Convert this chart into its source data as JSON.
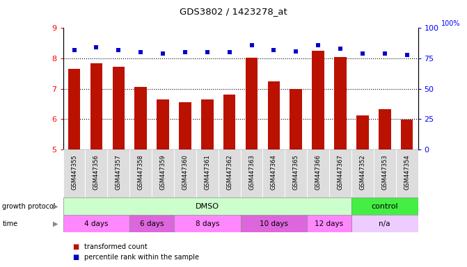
{
  "title": "GDS3802 / 1423278_at",
  "samples": [
    "GSM447355",
    "GSM447356",
    "GSM447357",
    "GSM447358",
    "GSM447359",
    "GSM447360",
    "GSM447361",
    "GSM447362",
    "GSM447363",
    "GSM447364",
    "GSM447365",
    "GSM447366",
    "GSM447367",
    "GSM447352",
    "GSM447353",
    "GSM447354"
  ],
  "transformed_count": [
    7.65,
    7.85,
    7.72,
    7.05,
    6.65,
    6.55,
    6.65,
    6.82,
    8.02,
    7.25,
    7.0,
    8.25,
    8.05,
    6.12,
    6.32,
    5.98
  ],
  "percentile_rank": [
    82,
    84,
    82,
    80,
    79,
    80,
    80,
    80,
    86,
    82,
    81,
    86,
    83,
    79,
    79,
    78
  ],
  "ylim_left": [
    5,
    9
  ],
  "ylim_right": [
    0,
    100
  ],
  "yticks_left": [
    5,
    6,
    7,
    8,
    9
  ],
  "yticks_right": [
    0,
    25,
    50,
    75,
    100
  ],
  "bar_color": "#bb1100",
  "dot_color": "#0000cc",
  "growth_protocol_groups": [
    {
      "label": "DMSO",
      "start": 0,
      "end": 13,
      "color": "#ccffcc"
    },
    {
      "label": "control",
      "start": 13,
      "end": 16,
      "color": "#44ee44"
    }
  ],
  "time_groups": [
    {
      "label": "4 days",
      "start": 0,
      "end": 3,
      "color": "#ff88ff"
    },
    {
      "label": "6 days",
      "start": 3,
      "end": 5,
      "color": "#dd66dd"
    },
    {
      "label": "8 days",
      "start": 5,
      "end": 8,
      "color": "#ff88ff"
    },
    {
      "label": "10 days",
      "start": 8,
      "end": 11,
      "color": "#dd66dd"
    },
    {
      "label": "12 days",
      "start": 11,
      "end": 13,
      "color": "#ff88ff"
    },
    {
      "label": "n/a",
      "start": 13,
      "end": 16,
      "color": "#eeccff"
    }
  ],
  "legend_items": [
    {
      "label": "transformed count",
      "color": "#bb1100"
    },
    {
      "label": "percentile rank within the sample",
      "color": "#0000cc"
    }
  ]
}
